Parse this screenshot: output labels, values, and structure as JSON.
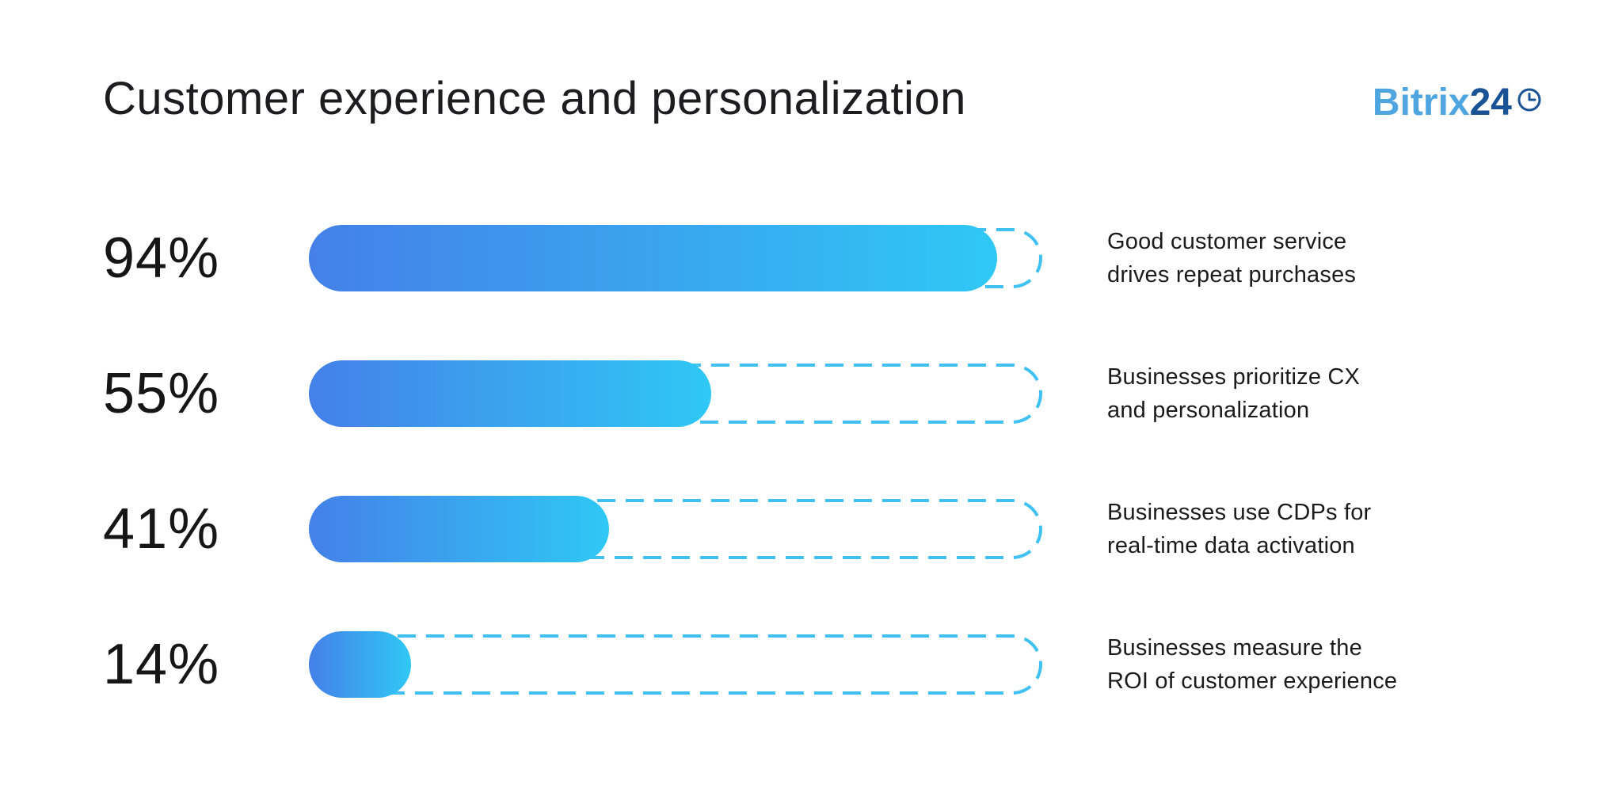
{
  "header": {
    "title": "Customer experience and personalization",
    "logo": {
      "text_primary": "Bitrix",
      "text_secondary": "24",
      "icon": "clock-icon",
      "color_primary": "#4ea5e0",
      "color_secondary": "#1a5296"
    }
  },
  "colors": {
    "background": "#ffffff",
    "text": "#1d1d1f",
    "bar_gradient_start": "#4480e8",
    "bar_gradient_end": "#2fc8f5",
    "track_dash": "#3fc2f3"
  },
  "chart_data": {
    "type": "bar",
    "orientation": "horizontal",
    "title": "Customer experience and personalization",
    "xlabel": "",
    "ylabel": "",
    "xlim": [
      0,
      100
    ],
    "unit": "%",
    "grid": false,
    "legend": false,
    "bar_style": "rounded pill, blue-to-cyan gradient fill over dashed cyan outline track",
    "categories": [
      "Good customer service drives repeat purchases",
      "Businesses prioritize CX and personalization",
      "Businesses use CDPs for real-time data activation",
      "Businesses measure the ROI of customer experience"
    ],
    "values": [
      94,
      55,
      41,
      14
    ],
    "value_labels": [
      "94%",
      "55%",
      "41%",
      "14%"
    ],
    "rows": [
      {
        "value": 94,
        "value_label": "94%",
        "label_line1": "Good customer service",
        "label_line2": "drives repeat purchases"
      },
      {
        "value": 55,
        "value_label": "55%",
        "label_line1": "Businesses prioritize CX",
        "label_line2": "and personalization"
      },
      {
        "value": 41,
        "value_label": "41%",
        "label_line1": "Businesses use CDPs for",
        "label_line2": "real-time data activation"
      },
      {
        "value": 14,
        "value_label": "14%",
        "label_line1": "Businesses measure the",
        "label_line2": "ROI of customer experience"
      }
    ]
  }
}
